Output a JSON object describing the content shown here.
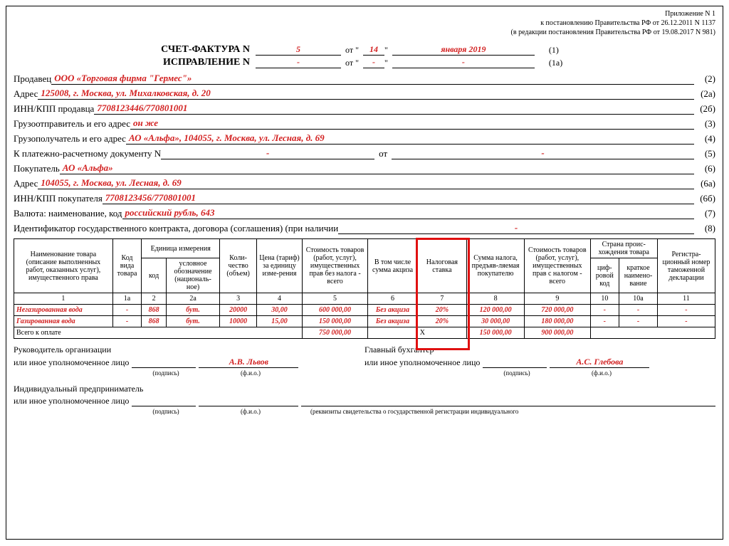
{
  "appendix": {
    "line1": "Приложение N 1",
    "line2": "к постановлению Правительства РФ от 26.12.2011 N 1137",
    "line3": "(в редакции постановления Правительства РФ от 19.08.2017 N 981)"
  },
  "title": {
    "invoice_label": "СЧЕТ-ФАКТУРА N",
    "invoice_no": "5",
    "date_ot": "от \"",
    "date_day": "14",
    "date_qt": "\"",
    "date_rest": "января 2019",
    "code1": "(1)",
    "correction_label": "ИСПРАВЛЕНИЕ N",
    "correction_no": "-",
    "corr_date_day": "-",
    "corr_date_rest": "-",
    "code1a": "(1а)"
  },
  "fields": {
    "seller_lbl": "Продавец",
    "seller_val": "ООО «Торговая фирма \"Гермес\"»",
    "seller_code": "(2)",
    "seller_addr_lbl": "Адрес",
    "seller_addr_val": "125008, г. Москва, ул. Михалковская, д. 20",
    "seller_addr_code": "(2а)",
    "seller_inn_lbl": "ИНН/КПП продавца",
    "seller_inn_val": "7708123446/770801001",
    "seller_inn_code": "(2б)",
    "shipper_lbl": "Грузоотправитель и его адрес",
    "shipper_val": "он же",
    "shipper_code": "(3)",
    "consignee_lbl": "Грузополучатель и его адрес",
    "consignee_val": "АО «Альфа», 104055, г. Москва, ул. Лесная, д. 69",
    "consignee_code": "(4)",
    "paydoc_lbl": "К платежно-расчетному документу N",
    "paydoc_no": "-",
    "paydoc_ot": "от",
    "paydoc_date": "-",
    "paydoc_code": "(5)",
    "buyer_lbl": "Покупатель",
    "buyer_val": "АО «Альфа»",
    "buyer_code": "(6)",
    "buyer_addr_lbl": "Адрес",
    "buyer_addr_val": "104055, г. Москва, ул. Лесная, д. 69",
    "buyer_addr_code": "(6а)",
    "buyer_inn_lbl": "ИНН/КПП покупателя",
    "buyer_inn_val": "7708123456/770801001",
    "buyer_inn_code": "(6б)",
    "currency_lbl": "Валюта: наименование, код",
    "currency_val": "российский рубль, 643",
    "currency_code": "(7)",
    "contract_lbl": "Идентификатор государственного контракта, договора (соглашения) (при наличии",
    "contract_val": "-",
    "contract_code": "(8)"
  },
  "table": {
    "headers": {
      "h1": "Наименование товара (описание выполненных работ, оказанных услуг), имущественного права",
      "h1a": "Код вида товара",
      "h_unit": "Единица измерения",
      "h2": "код",
      "h2a": "условное обозначение (националь-ное)",
      "h3": "Коли-чество (объем)",
      "h4": "Цена (тариф) за единицу изме-рения",
      "h5": "Стоимость товаров (работ, услуг), имущественных прав без налога - всего",
      "h6": "В том числе сумма акциза",
      "h7": "Налоговая ставка",
      "h8": "Сумма налога, предъяв-ляемая покупателю",
      "h9": "Стоимость товаров (работ, услуг), имущественных прав с налогом - всего",
      "h_country": "Страна проис-хождения товара",
      "h10": "циф-ровой код",
      "h10a": "краткое наимено-вание",
      "h11": "Регистра-ционный номер таможенной декларации"
    },
    "colnums": {
      "c1": "1",
      "c1a": "1а",
      "c2": "2",
      "c2a": "2а",
      "c3": "3",
      "c4": "4",
      "c5": "5",
      "c6": "6",
      "c7": "7",
      "c8": "8",
      "c9": "9",
      "c10": "10",
      "c10a": "10а",
      "c11": "11"
    },
    "rows": [
      {
        "name": "Негазированная вода",
        "c1a": "-",
        "c2": "868",
        "c2a": "бут.",
        "c3": "20000",
        "c4": "30,00",
        "c5": "600 000,00",
        "c6": "Без акциза",
        "c7": "20%",
        "c8": "120 000,00",
        "c9": "720 000,00",
        "c10": "-",
        "c10a": "-",
        "c11": "-"
      },
      {
        "name": "Газированная вода",
        "c1a": "-",
        "c2": "868",
        "c2a": "бут.",
        "c3": "10000",
        "c4": "15,00",
        "c5": "150 000,00",
        "c6": "Без акциза",
        "c7": "20%",
        "c8": "30 000,00",
        "c9": "180 000,00",
        "c10": "-",
        "c10a": "-",
        "c11": "-"
      }
    ],
    "total": {
      "label": "Всего к оплате",
      "c5": "750 000,00",
      "c7": "Х",
      "c8": "150 000,00",
      "c9": "900 000,00"
    }
  },
  "sign": {
    "head_lbl1": "Руководитель организации",
    "head_lbl2": "или иное уполномоченное лицо",
    "head_name": "А.В. Львов",
    "acc_lbl1": "Главный бухгалтер",
    "acc_lbl2": "или иное уполномоченное лицо",
    "acc_name": "А.С. Глебова",
    "ip_lbl1": "Индивидуальный предприниматель",
    "ip_lbl2": "или иное уполномоченное лицо",
    "sub_sign": "(подпись)",
    "sub_fio": "(ф.и.о.)",
    "sub_req": "(реквизиты свидетельства о государственной регистрации индивидуального"
  },
  "style": {
    "red_color": "#d22020",
    "highlight_border": "#e01010"
  }
}
